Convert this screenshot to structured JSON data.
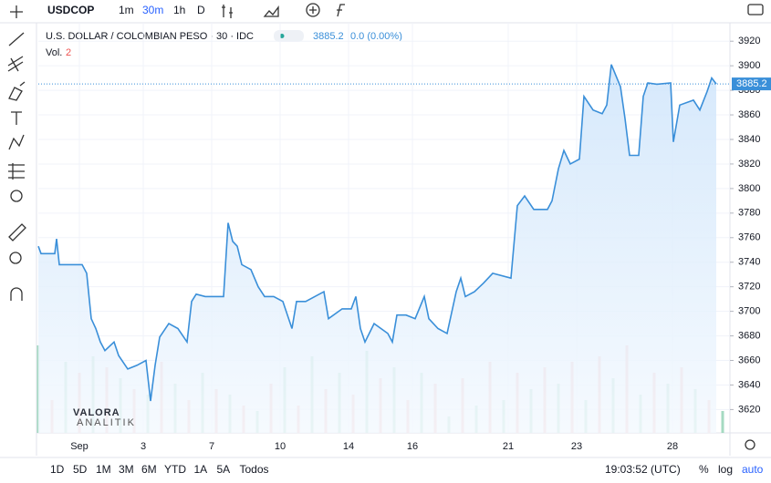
{
  "toolbar": {
    "symbol": "USDCOP",
    "intervals": [
      "1m",
      "30m",
      "1h",
      "D"
    ]
  },
  "chart_data": {
    "type": "area",
    "title": "U.S. DOLLAR / COLOMBIAN PESO · 30 · IDC",
    "change": "0.0 (0.00%)",
    "last_value": 3885.2,
    "volume_label": "Vol.",
    "volume_value": 2,
    "watermark": "VALORA",
    "watermark_sub": "ANALITIK",
    "color": "#3a8fd9",
    "grid": true,
    "xlim": [
      0,
      151.6
    ],
    "xticks": [
      {
        "value": 9,
        "label": "Sep"
      },
      {
        "value": 23,
        "label": "3"
      },
      {
        "value": 38,
        "label": "7"
      },
      {
        "value": 53,
        "label": "10"
      },
      {
        "value": 68,
        "label": "14"
      },
      {
        "value": 82,
        "label": "16"
      },
      {
        "value": 103,
        "label": "21"
      },
      {
        "value": 118,
        "label": "23"
      },
      {
        "value": 139,
        "label": "28"
      }
    ],
    "ylim": [
      3601,
      3935
    ],
    "yticks": [
      3620,
      3640,
      3660,
      3680,
      3700,
      3720,
      3740,
      3760,
      3780,
      3800,
      3820,
      3840,
      3860,
      3880,
      3900,
      3920
    ],
    "series": [
      {
        "name": "USDCOP",
        "x": [
          0,
          0.6,
          3.6,
          4,
          4.6,
          9.6,
          10.6,
          11.6,
          12.6,
          13.6,
          14.6,
          16.6,
          17.6,
          19.6,
          21.6,
          23.6,
          24.6,
          25.6,
          26.6,
          28.6,
          30.6,
          32.6,
          33.6,
          34.6,
          36.6,
          40.6,
          41.6,
          42.6,
          43.6,
          44.6,
          46.6,
          48.2,
          49.6,
          51.6,
          53.6,
          55.6,
          56.6,
          58.6,
          60.6,
          62.6,
          63.6,
          66.6,
          68.6,
          69.6,
          70.6,
          71.6,
          73.6,
          76.6,
          77.6,
          78.6,
          80.6,
          82.6,
          84.6,
          85.6,
          87.6,
          89.6,
          91.6,
          92.6,
          93.6,
          95.6,
          97.6,
          99.6,
          103.6,
          105,
          106.6,
          108.6,
          111.6,
          112.6,
          114,
          115.2,
          116.6,
          118.6,
          119.6,
          121.6,
          123.6,
          124.6,
          125.6,
          127.6,
          128.6,
          129.6,
          131.6,
          132.6,
          133.6,
          135.6,
          138.6,
          139.2,
          140.6,
          143.6,
          145,
          146.6,
          147.6,
          148.6
        ],
        "values": [
          3753,
          3747,
          3747,
          3759,
          3738,
          3738,
          3731,
          3694,
          3686,
          3675,
          3668,
          3675,
          3664,
          3653,
          3656,
          3660,
          3627,
          3656,
          3679,
          3690,
          3686,
          3675,
          3708,
          3714,
          3712,
          3712,
          3772,
          3757,
          3753,
          3738,
          3734,
          3720,
          3712,
          3712,
          3708,
          3686,
          3708,
          3708,
          3712,
          3716,
          3694,
          3702,
          3702,
          3712,
          3686,
          3675,
          3690,
          3682,
          3675,
          3697,
          3697,
          3694,
          3712,
          3694,
          3686,
          3682,
          3716,
          3727,
          3712,
          3716,
          3723,
          3731,
          3727,
          3786,
          3794,
          3783,
          3783,
          3790,
          3816,
          3831,
          3820,
          3824,
          3875,
          3864,
          3861,
          3868,
          3901,
          3883,
          3857,
          3827,
          3827,
          3875,
          3886,
          3885,
          3886,
          3838,
          3868,
          3872,
          3864,
          3879,
          3890,
          3885.2
        ]
      }
    ],
    "volume": {
      "colors": [
        "#8fd1b3",
        "#f3a5a5"
      ],
      "vlim": [
        0,
        100
      ],
      "x": [
        0,
        3,
        6,
        9,
        12,
        15,
        18,
        21,
        24,
        27,
        30,
        33,
        36,
        39,
        42,
        45,
        48,
        51,
        54,
        57,
        60,
        63,
        66,
        69,
        72,
        75,
        78,
        81,
        84,
        87,
        90,
        93,
        96,
        99,
        102,
        105,
        108,
        111,
        114,
        117,
        120,
        123,
        126,
        129,
        132,
        135,
        138,
        141,
        144,
        147,
        150
      ],
      "values": [
        80,
        30,
        65,
        55,
        70,
        60,
        50,
        40,
        35,
        65,
        45,
        30,
        55,
        40,
        35,
        25,
        20,
        45,
        60,
        25,
        70,
        40,
        55,
        35,
        75,
        50,
        60,
        30,
        55,
        45,
        15,
        50,
        25,
        65,
        30,
        55,
        40,
        60,
        45,
        65,
        30,
        70,
        50,
        80,
        35,
        55,
        45,
        60,
        40,
        30,
        20
      ]
    }
  },
  "bottom_bar": {
    "ranges": [
      "1D",
      "5D",
      "1M",
      "3M",
      "6M",
      "YTD",
      "1A",
      "5A",
      "Todos"
    ],
    "time": "19:03:52 (UTC)",
    "percent": "%",
    "log": "log",
    "auto": "auto"
  }
}
